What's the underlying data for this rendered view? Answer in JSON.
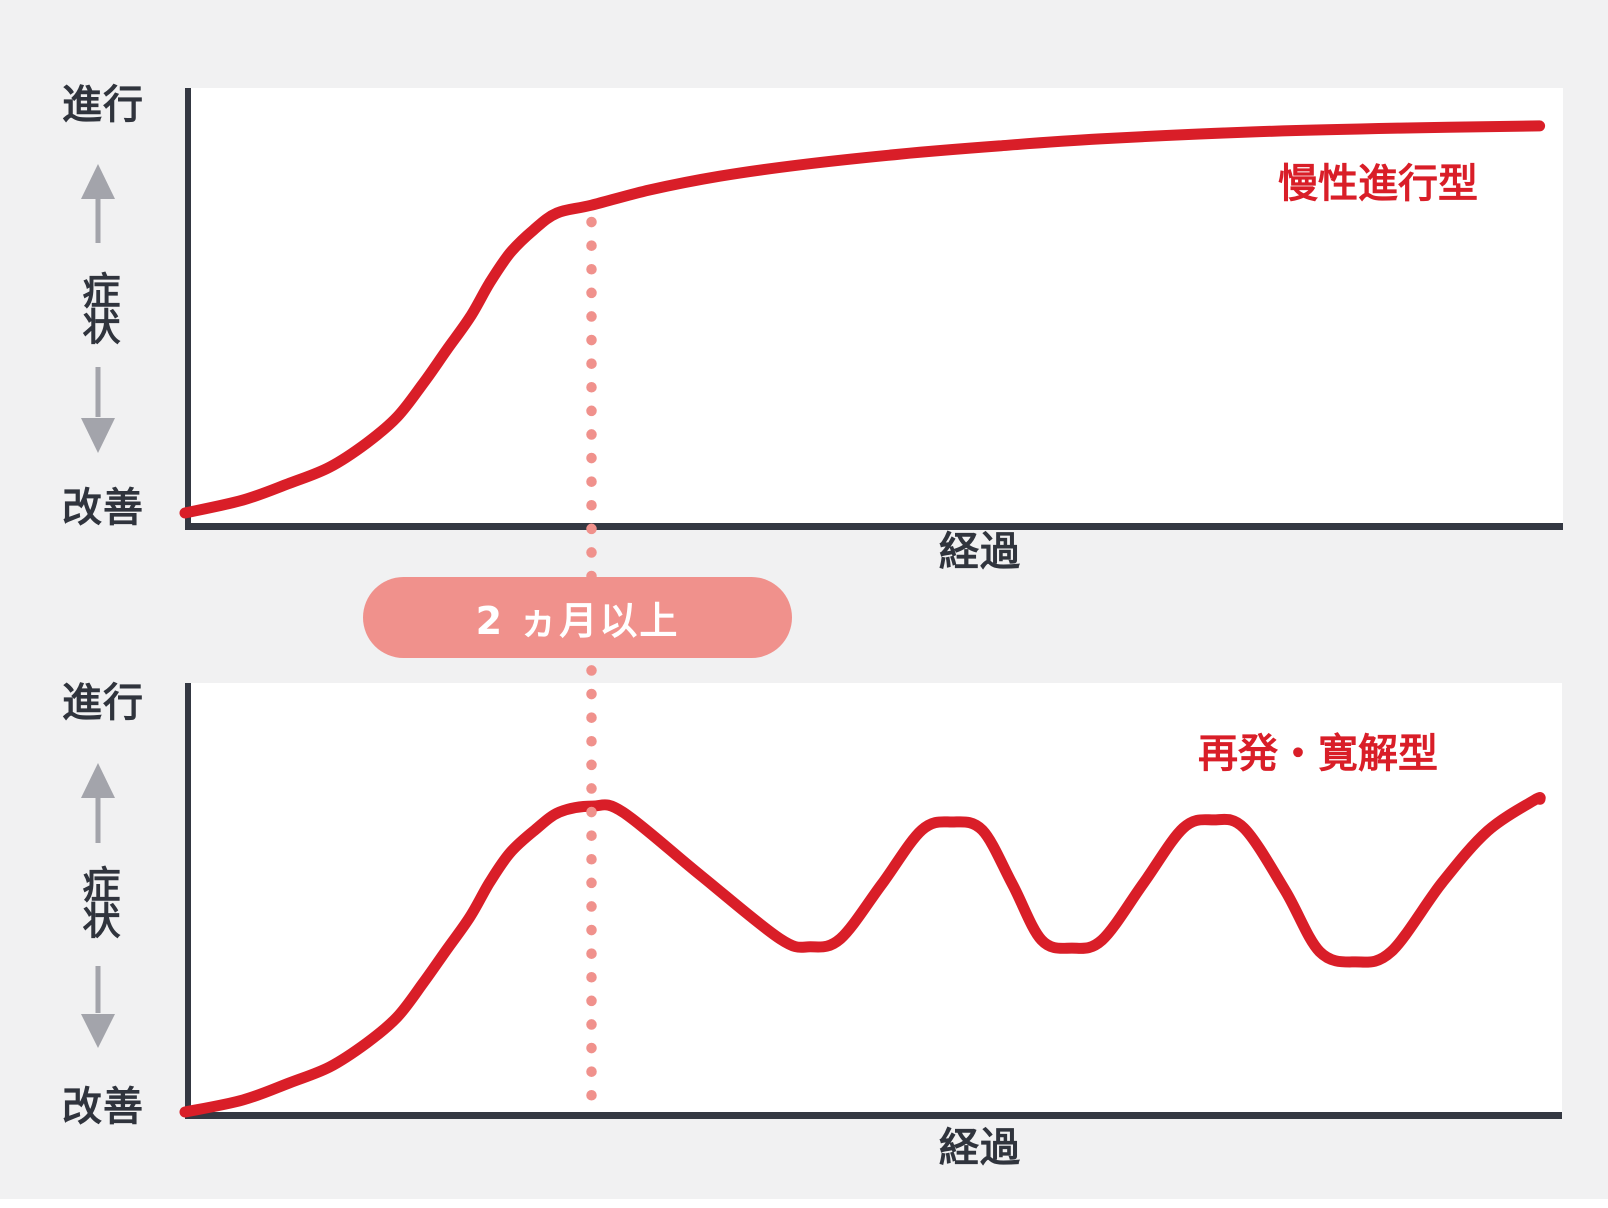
{
  "page": {
    "background_color": "#f1f1f2",
    "plot_background_color": "#ffffff",
    "axis_color": "#343842",
    "text_color": "#30343d",
    "curve_color": "#d91e28",
    "salmon_color": "#f0918c",
    "arrow_color": "#a3a4ab"
  },
  "annotation": {
    "badge_label": "2 ヵ月以上",
    "dotted_line_x_percent": 29.5
  },
  "charts": [
    {
      "series_label": "慢性進行型",
      "y_axis": {
        "top": "進行",
        "mid": "症状",
        "bottom": "改善"
      },
      "x_axis": {
        "label": "経過"
      }
    },
    {
      "series_label": "再発・寛解型",
      "y_axis": {
        "top": "進行",
        "mid": "症状",
        "bottom": "改善"
      },
      "x_axis": {
        "label": "経過"
      }
    }
  ],
  "chart_data": [
    {
      "type": "line",
      "title": "慢性進行型",
      "xlabel": "経過",
      "ylabel": "症状",
      "y_axis_top_label": "進行",
      "y_axis_bottom_label": "改善",
      "x_range_percent": [
        0,
        100
      ],
      "y_range_percent": [
        0,
        100
      ],
      "grid": false,
      "legend_position": "inside-right",
      "annotations": [
        {
          "type": "dotted-vline",
          "x_percent": 29.5,
          "label": "2 ヵ月以上"
        }
      ],
      "series": [
        {
          "name": "慢性進行型",
          "shape": "sigmoid rise then slow plateau",
          "points_percent": [
            [
              0,
              2.3
            ],
            [
              4.2,
              5.3
            ],
            [
              7.6,
              9.2
            ],
            [
              10.5,
              12.9
            ],
            [
              13.2,
              18.5
            ],
            [
              15.4,
              24.5
            ],
            [
              17.3,
              32.3
            ],
            [
              19.0,
              40.0
            ],
            [
              20.7,
              47.6
            ],
            [
              22.1,
              55.4
            ],
            [
              23.6,
              62.4
            ],
            [
              25.3,
              67.7
            ],
            [
              27.0,
              71.6
            ],
            [
              29.5,
              73.4
            ],
            [
              33.7,
              76.9
            ],
            [
              38.8,
              80.1
            ],
            [
              44.6,
              82.7
            ],
            [
              51.9,
              85.2
            ],
            [
              59.1,
              87.1
            ],
            [
              66.4,
              88.7
            ],
            [
              77.3,
              90.3
            ],
            [
              88.2,
              91.2
            ],
            [
              98.3,
              91.7
            ]
          ]
        }
      ]
    },
    {
      "type": "line",
      "title": "再発・寛解型",
      "xlabel": "経過",
      "ylabel": "症状",
      "y_axis_top_label": "進行",
      "y_axis_bottom_label": "改善",
      "x_range_percent": [
        0,
        100
      ],
      "y_range_percent": [
        0,
        100
      ],
      "grid": false,
      "legend_position": "inside-right",
      "annotations": [
        {
          "type": "dotted-vline",
          "x_percent": 29.5,
          "label": "2 ヵ月以上"
        }
      ],
      "series": [
        {
          "name": "再発・寛解型",
          "shape": "sigmoid rise to first peak at 2-month line, then relapsing-remitting oscillation",
          "points_percent": [
            [
              0,
              0
            ],
            [
              4.2,
              2.8
            ],
            [
              7.6,
              6.8
            ],
            [
              10.5,
              10.5
            ],
            [
              13.2,
              16.1
            ],
            [
              15.4,
              22.1
            ],
            [
              17.3,
              30.1
            ],
            [
              19.0,
              37.8
            ],
            [
              20.7,
              45.5
            ],
            [
              22.1,
              53.4
            ],
            [
              23.6,
              60.4
            ],
            [
              25.4,
              65.7
            ],
            [
              27.2,
              69.9
            ],
            [
              29.6,
              71.3
            ],
            [
              31.8,
              69.9
            ],
            [
              37.5,
              55.0
            ],
            [
              43.2,
              40.4
            ],
            [
              45.4,
              38.5
            ],
            [
              47.6,
              40.4
            ],
            [
              50.6,
              53.1
            ],
            [
              53.5,
              65.7
            ],
            [
              55.7,
              67.6
            ],
            [
              57.9,
              65.7
            ],
            [
              60.1,
              53.0
            ],
            [
              62.2,
              40.1
            ],
            [
              64.4,
              38.2
            ],
            [
              66.6,
              40.1
            ],
            [
              69.6,
              53.3
            ],
            [
              72.5,
              66.2
            ],
            [
              74.7,
              68.1
            ],
            [
              76.9,
              66.2
            ],
            [
              79.9,
              51.6
            ],
            [
              82.4,
              37.4
            ],
            [
              85.0,
              35.0
            ],
            [
              87.6,
              37.4
            ],
            [
              91.3,
              53.5
            ],
            [
              94.6,
              65.5
            ],
            [
              98.0,
              72.7
            ],
            [
              98.4,
              72.9
            ]
          ]
        }
      ]
    }
  ]
}
